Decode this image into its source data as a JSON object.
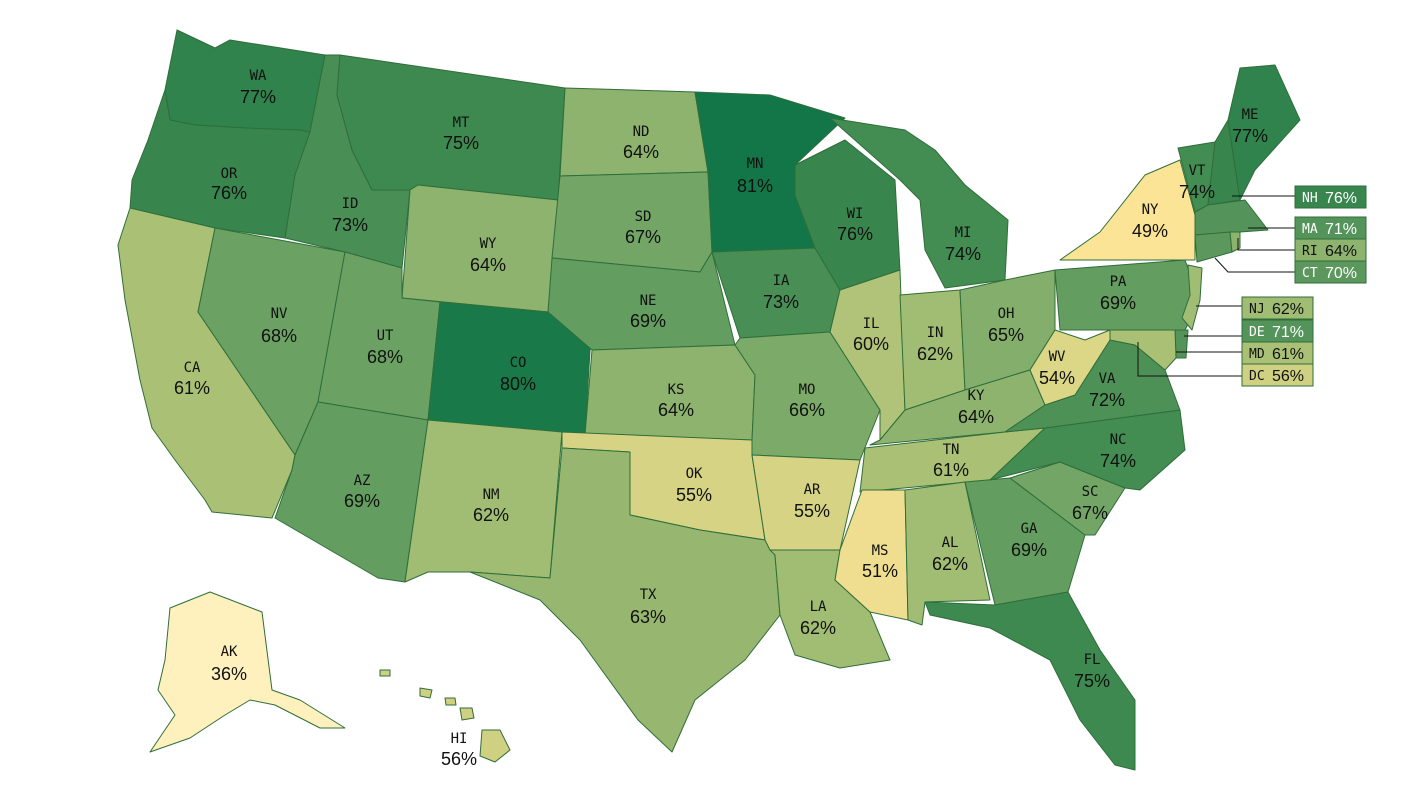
{
  "states": {
    "WA": {
      "abbr": "WA",
      "pct": "77%",
      "value": 77
    },
    "OR": {
      "abbr": "OR",
      "pct": "76%",
      "value": 76
    },
    "CA": {
      "abbr": "CA",
      "pct": "61%",
      "value": 61
    },
    "NV": {
      "abbr": "NV",
      "pct": "68%",
      "value": 68
    },
    "ID": {
      "abbr": "ID",
      "pct": "73%",
      "value": 73
    },
    "MT": {
      "abbr": "MT",
      "pct": "75%",
      "value": 75
    },
    "WY": {
      "abbr": "WY",
      "pct": "64%",
      "value": 64
    },
    "UT": {
      "abbr": "UT",
      "pct": "68%",
      "value": 68
    },
    "AZ": {
      "abbr": "AZ",
      "pct": "69%",
      "value": 69
    },
    "CO": {
      "abbr": "CO",
      "pct": "80%",
      "value": 80
    },
    "NM": {
      "abbr": "NM",
      "pct": "62%",
      "value": 62
    },
    "ND": {
      "abbr": "ND",
      "pct": "64%",
      "value": 64
    },
    "SD": {
      "abbr": "SD",
      "pct": "67%",
      "value": 67
    },
    "NE": {
      "abbr": "NE",
      "pct": "69%",
      "value": 69
    },
    "KS": {
      "abbr": "KS",
      "pct": "64%",
      "value": 64
    },
    "OK": {
      "abbr": "OK",
      "pct": "55%",
      "value": 55
    },
    "TX": {
      "abbr": "TX",
      "pct": "63%",
      "value": 63
    },
    "MN": {
      "abbr": "MN",
      "pct": "81%",
      "value": 81
    },
    "IA": {
      "abbr": "IA",
      "pct": "73%",
      "value": 73
    },
    "MO": {
      "abbr": "MO",
      "pct": "66%",
      "value": 66
    },
    "AR": {
      "abbr": "AR",
      "pct": "55%",
      "value": 55
    },
    "LA": {
      "abbr": "LA",
      "pct": "62%",
      "value": 62
    },
    "WI": {
      "abbr": "WI",
      "pct": "76%",
      "value": 76
    },
    "IL": {
      "abbr": "IL",
      "pct": "60%",
      "value": 60
    },
    "MI": {
      "abbr": "MI",
      "pct": "74%",
      "value": 74
    },
    "IN": {
      "abbr": "IN",
      "pct": "62%",
      "value": 62
    },
    "OH": {
      "abbr": "OH",
      "pct": "65%",
      "value": 65
    },
    "KY": {
      "abbr": "KY",
      "pct": "64%",
      "value": 64
    },
    "TN": {
      "abbr": "TN",
      "pct": "61%",
      "value": 61
    },
    "MS": {
      "abbr": "MS",
      "pct": "51%",
      "value": 51
    },
    "AL": {
      "abbr": "AL",
      "pct": "62%",
      "value": 62
    },
    "GA": {
      "abbr": "GA",
      "pct": "69%",
      "value": 69
    },
    "FL": {
      "abbr": "FL",
      "pct": "75%",
      "value": 75
    },
    "SC": {
      "abbr": "SC",
      "pct": "67%",
      "value": 67
    },
    "NC": {
      "abbr": "NC",
      "pct": "74%",
      "value": 74
    },
    "VA": {
      "abbr": "VA",
      "pct": "72%",
      "value": 72
    },
    "WV": {
      "abbr": "WV",
      "pct": "54%",
      "value": 54
    },
    "PA": {
      "abbr": "PA",
      "pct": "69%",
      "value": 69
    },
    "NY": {
      "abbr": "NY",
      "pct": "49%",
      "value": 49
    },
    "VT": {
      "abbr": "VT",
      "pct": "74%",
      "value": 74
    },
    "ME": {
      "abbr": "ME",
      "pct": "77%",
      "value": 77
    },
    "NH": {
      "abbr": "NH",
      "pct": "76%",
      "value": 76
    },
    "MA": {
      "abbr": "MA",
      "pct": "71%",
      "value": 71
    },
    "RI": {
      "abbr": "RI",
      "pct": "64%",
      "value": 64
    },
    "CT": {
      "abbr": "CT",
      "pct": "70%",
      "value": 70
    },
    "NJ": {
      "abbr": "NJ",
      "pct": "62%",
      "value": 62
    },
    "DE": {
      "abbr": "DE",
      "pct": "71%",
      "value": 71
    },
    "MD": {
      "abbr": "MD",
      "pct": "61%",
      "value": 61
    },
    "DC": {
      "abbr": "DC",
      "pct": "56%",
      "value": 56
    },
    "AK": {
      "abbr": "AK",
      "pct": "36%",
      "value": 36
    },
    "HI": {
      "abbr": "HI",
      "pct": "56%",
      "value": 56
    }
  }
}
